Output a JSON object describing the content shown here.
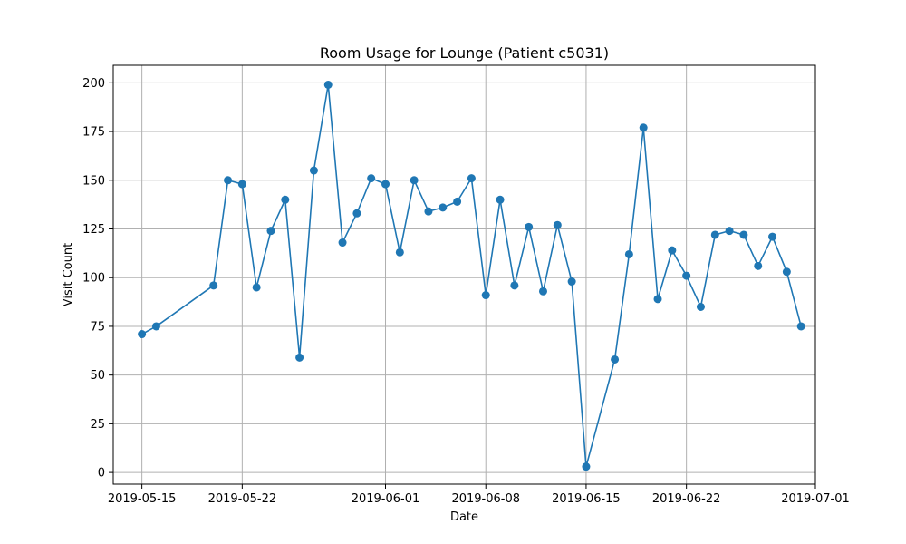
{
  "chart_data": {
    "type": "line",
    "title": "Room Usage for Lounge (Patient c5031)",
    "xlabel": "Date",
    "ylabel": "Visit Count",
    "x_ticks": [
      "2019-05-15",
      "2019-05-22",
      "2019-06-01",
      "2019-06-08",
      "2019-06-15",
      "2019-06-22",
      "2019-07-01"
    ],
    "y_ticks": [
      0,
      25,
      50,
      75,
      100,
      125,
      150,
      175,
      200
    ],
    "xlim": [
      "2019-05-13",
      "2019-07-01"
    ],
    "ylim": [
      -6,
      209
    ],
    "grid": true,
    "colors": {
      "series": "#1f77b4",
      "grid": "#b0b0b0"
    },
    "series": [
      {
        "x": [
          "2019-05-15",
          "2019-05-16",
          "2019-05-20",
          "2019-05-21",
          "2019-05-22",
          "2019-05-23",
          "2019-05-24",
          "2019-05-25",
          "2019-05-26",
          "2019-05-27",
          "2019-05-28",
          "2019-05-29",
          "2019-05-30",
          "2019-05-31",
          "2019-06-01",
          "2019-06-02",
          "2019-06-03",
          "2019-06-04",
          "2019-06-05",
          "2019-06-06",
          "2019-06-07",
          "2019-06-08",
          "2019-06-09",
          "2019-06-10",
          "2019-06-11",
          "2019-06-12",
          "2019-06-13",
          "2019-06-14",
          "2019-06-15",
          "2019-06-17",
          "2019-06-18",
          "2019-06-19",
          "2019-06-20",
          "2019-06-21",
          "2019-06-22",
          "2019-06-23",
          "2019-06-24",
          "2019-06-25",
          "2019-06-26",
          "2019-06-27",
          "2019-06-28",
          "2019-06-29",
          "2019-06-30"
        ],
        "values": [
          71,
          75,
          96,
          150,
          148,
          95,
          124,
          140,
          59,
          155,
          199,
          118,
          133,
          151,
          148,
          113,
          150,
          134,
          136,
          139,
          151,
          91,
          140,
          96,
          126,
          93,
          127,
          98,
          3,
          58,
          112,
          177,
          89,
          114,
          101,
          85,
          122,
          124,
          122,
          106,
          121,
          103,
          75
        ]
      }
    ]
  }
}
